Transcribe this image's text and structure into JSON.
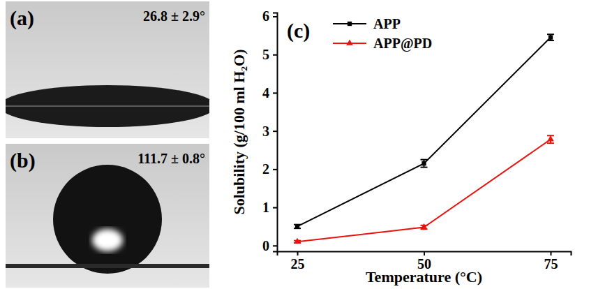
{
  "images": [
    {
      "label": "(a)",
      "caption": "26.8 ± 2.9°"
    },
    {
      "label": "(b)",
      "caption": "111.7 ± 0.8°"
    }
  ],
  "chart_data": {
    "type": "line",
    "annotations": [
      "(c)"
    ],
    "x_label": "Temperature (°C)",
    "y_label": "Solubility (g/100 ml H₂O)",
    "x": [
      25,
      50,
      75
    ],
    "xlim": [
      21,
      79
    ],
    "xticks": [
      25,
      50,
      75
    ],
    "ylim": [
      -0.15,
      6.1
    ],
    "yticks": [
      0,
      1,
      2,
      3,
      4,
      5,
      6
    ],
    "legend": "upper left",
    "series": [
      {
        "name": "APP",
        "color": "#000000",
        "marker": "square",
        "values": [
          0.5,
          2.15,
          5.45
        ],
        "errors": [
          0.05,
          0.1,
          0.08
        ]
      },
      {
        "name": "APP@PD",
        "color": "#e8130f",
        "marker": "triangle",
        "values": [
          0.1,
          0.48,
          2.78
        ],
        "errors": [
          0.03,
          0.05,
          0.1
        ]
      }
    ]
  }
}
